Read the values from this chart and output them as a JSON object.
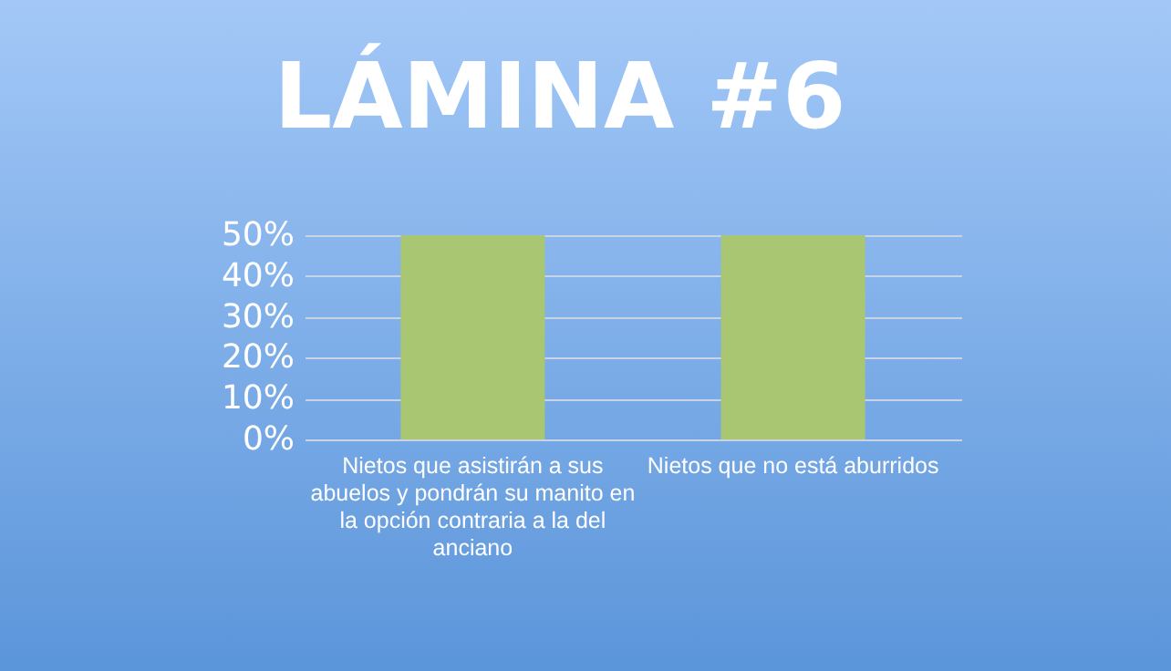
{
  "chart_data": {
    "type": "bar",
    "title": "LÁMINA #6",
    "categories": [
      "Nietos que asistirán a sus abuelos y pondrán su manito en la opción contraria a la del anciano",
      "Nietos que no está aburridos"
    ],
    "values": [
      50,
      50
    ],
    "color": "#a9c673",
    "ylim": [
      0,
      50
    ],
    "yticks": [
      {
        "value": 0,
        "label": "0%"
      },
      {
        "value": 10,
        "label": "10%"
      },
      {
        "value": 20,
        "label": "20%"
      },
      {
        "value": 30,
        "label": "30%"
      },
      {
        "value": 40,
        "label": "40%"
      },
      {
        "value": 50,
        "label": "50%"
      }
    ],
    "grid": "y"
  }
}
